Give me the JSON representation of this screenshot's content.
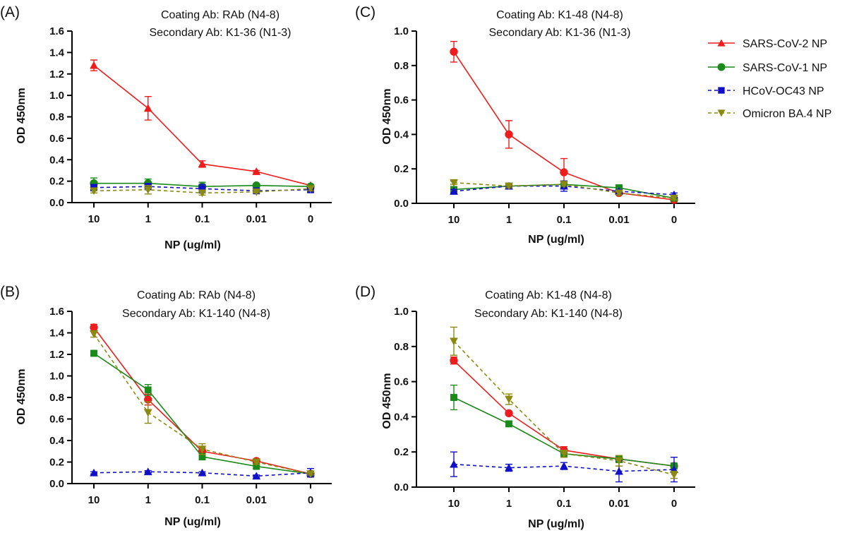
{
  "legend": [
    {
      "name": "SARS-CoV-2 NP",
      "color": "#ee1c1c",
      "marker": "triangle-up",
      "dash": "solid"
    },
    {
      "name": "SARS-CoV-1 NP",
      "color": "#1a8a1a",
      "marker": "circle",
      "dash": "solid"
    },
    {
      "name": "HCoV-OC43 NP",
      "color": "#1010c8",
      "marker": "square",
      "dash": "dashed"
    },
    {
      "name": "Omicron BA.4 NP",
      "color": "#8a8a10",
      "marker": "triangle-down",
      "dash": "dashed"
    }
  ],
  "chart_data": [
    {
      "panel": "(A)",
      "type": "line",
      "title": "Coating Ab: RAb (N4-8)",
      "subtitle": "Secondary Ab: K1-36 (N1-3)",
      "xlabel": "NP (ug/ml)",
      "ylabel": "OD 450nm",
      "categories": [
        "10",
        "1",
        "0.1",
        "0.01",
        "0"
      ],
      "ylim": [
        0,
        1.6
      ],
      "yticks": [
        "0.0",
        "0.2",
        "0.4",
        "0.6",
        "0.8",
        "1.0",
        "1.2",
        "1.4",
        "1.6"
      ],
      "series": [
        {
          "color": "#ee1c1c",
          "marker": "triangle-up",
          "dash": "solid",
          "values": [
            1.28,
            0.88,
            0.36,
            0.29,
            0.16
          ],
          "errors": [
            0.05,
            0.11,
            0.03,
            0.01,
            0.01
          ]
        },
        {
          "color": "#1a8a1a",
          "marker": "circle",
          "dash": "solid",
          "values": [
            0.18,
            0.18,
            0.15,
            0.16,
            0.15
          ],
          "errors": [
            0.05,
            0.04,
            0.04,
            0.01,
            0.02
          ]
        },
        {
          "color": "#1010c8",
          "marker": "square",
          "dash": "dashed",
          "values": [
            0.14,
            0.15,
            0.13,
            0.11,
            0.12
          ],
          "errors": [
            0.03,
            0.03,
            0.04,
            0.01,
            0.01
          ]
        },
        {
          "color": "#8a8a10",
          "marker": "triangle-down",
          "dash": "dashed",
          "values": [
            0.11,
            0.12,
            0.09,
            0.1,
            0.13
          ],
          "errors": [
            0.02,
            0.04,
            0.02,
            0.01,
            0.02
          ]
        }
      ]
    },
    {
      "panel": "(C)",
      "type": "line",
      "title": "Coating Ab: K1-48 (N4-8)",
      "subtitle": "Secondary Ab: K1-36 (N1-3)",
      "xlabel": "NP (ug/ml)",
      "ylabel": "OD 450nm",
      "categories": [
        "10",
        "1",
        "0.1",
        "0.01",
        "0"
      ],
      "ylim": [
        0,
        1.0
      ],
      "yticks": [
        "0.0",
        "0.2",
        "0.4",
        "0.6",
        "0.8",
        "1.0"
      ],
      "series": [
        {
          "color": "#ee1c1c",
          "marker": "circle",
          "dash": "solid",
          "values": [
            0.88,
            0.4,
            0.18,
            0.06,
            0.02
          ],
          "errors": [
            0.06,
            0.08,
            0.08,
            0.01,
            0.01
          ]
        },
        {
          "color": "#1a8a1a",
          "marker": "square",
          "dash": "solid",
          "values": [
            0.08,
            0.1,
            0.11,
            0.09,
            0.03
          ],
          "errors": [
            0.01,
            0.01,
            0.02,
            0.01,
            0.01
          ]
        },
        {
          "color": "#1010c8",
          "marker": "triangle-up",
          "dash": "dashed",
          "values": [
            0.07,
            0.1,
            0.1,
            0.07,
            0.05
          ],
          "errors": [
            0.01,
            0.01,
            0.03,
            0.01,
            0.01
          ]
        },
        {
          "color": "#8a8a10",
          "marker": "triangle-down",
          "dash": "dashed",
          "values": [
            0.12,
            0.1,
            0.11,
            0.06,
            0.03
          ],
          "errors": [
            0.01,
            0.01,
            0.01,
            0.01,
            0.01
          ]
        }
      ]
    },
    {
      "panel": "(B)",
      "type": "line",
      "title": "Coating Ab: RAb (N4-8)",
      "subtitle": "Secondary Ab: K1-140 (N4-8)",
      "xlabel": "NP (ug/ml)",
      "ylabel": "OD 450nm",
      "categories": [
        "10",
        "1",
        "0.1",
        "0.01",
        "0"
      ],
      "ylim": [
        0,
        1.6
      ],
      "yticks": [
        "0.0",
        "0.2",
        "0.4",
        "0.6",
        "0.8",
        "1.0",
        "1.2",
        "1.4",
        "1.6"
      ],
      "series": [
        {
          "color": "#ee1c1c",
          "marker": "circle",
          "dash": "solid",
          "values": [
            1.45,
            0.78,
            0.3,
            0.21,
            0.09
          ],
          "errors": [
            0.03,
            0.05,
            0.03,
            0.02,
            0.01
          ]
        },
        {
          "color": "#1a8a1a",
          "marker": "square",
          "dash": "solid",
          "values": [
            1.21,
            0.87,
            0.25,
            0.16,
            0.09
          ],
          "errors": [
            0.02,
            0.05,
            0.03,
            0.02,
            0.01
          ]
        },
        {
          "color": "#1010c8",
          "marker": "triangle-up",
          "dash": "dashed",
          "values": [
            0.1,
            0.11,
            0.1,
            0.07,
            0.1
          ],
          "errors": [
            0.01,
            0.01,
            0.01,
            0.01,
            0.04
          ]
        },
        {
          "color": "#8a8a10",
          "marker": "triangle-down",
          "dash": "dashed",
          "values": [
            1.39,
            0.66,
            0.32,
            0.2,
            0.09
          ],
          "errors": [
            0.03,
            0.1,
            0.05,
            0.02,
            0.01
          ]
        }
      ]
    },
    {
      "panel": "(D)",
      "type": "line",
      "title": "Coating Ab: K1-48 (N4-8)",
      "subtitle": "Secondary Ab: K1-140 (N4-8)",
      "xlabel": "NP (ug/ml)",
      "ylabel": "OD 450nm",
      "categories": [
        "10",
        "1",
        "0.1",
        "0.01",
        "0"
      ],
      "ylim": [
        0,
        1.0
      ],
      "yticks": [
        "0.0",
        "0.2",
        "0.4",
        "0.6",
        "0.8",
        "1.0"
      ],
      "series": [
        {
          "color": "#ee1c1c",
          "marker": "circle",
          "dash": "solid",
          "values": [
            0.72,
            0.42,
            0.21,
            0.16,
            0.12
          ],
          "errors": [
            0.02,
            0.01,
            0.02,
            0.02,
            0.01
          ]
        },
        {
          "color": "#1a8a1a",
          "marker": "square",
          "dash": "solid",
          "values": [
            0.51,
            0.36,
            0.19,
            0.16,
            0.12
          ],
          "errors": [
            0.07,
            0.01,
            0.02,
            0.02,
            0.01
          ]
        },
        {
          "color": "#1010c8",
          "marker": "triangle-up",
          "dash": "dashed",
          "values": [
            0.13,
            0.11,
            0.12,
            0.09,
            0.1
          ],
          "errors": [
            0.07,
            0.02,
            0.02,
            0.06,
            0.07
          ]
        },
        {
          "color": "#8a8a10",
          "marker": "triangle-down",
          "dash": "dashed",
          "values": [
            0.83,
            0.5,
            0.19,
            0.15,
            0.07
          ],
          "errors": [
            0.08,
            0.03,
            0.02,
            0.03,
            0.02
          ]
        }
      ]
    }
  ]
}
